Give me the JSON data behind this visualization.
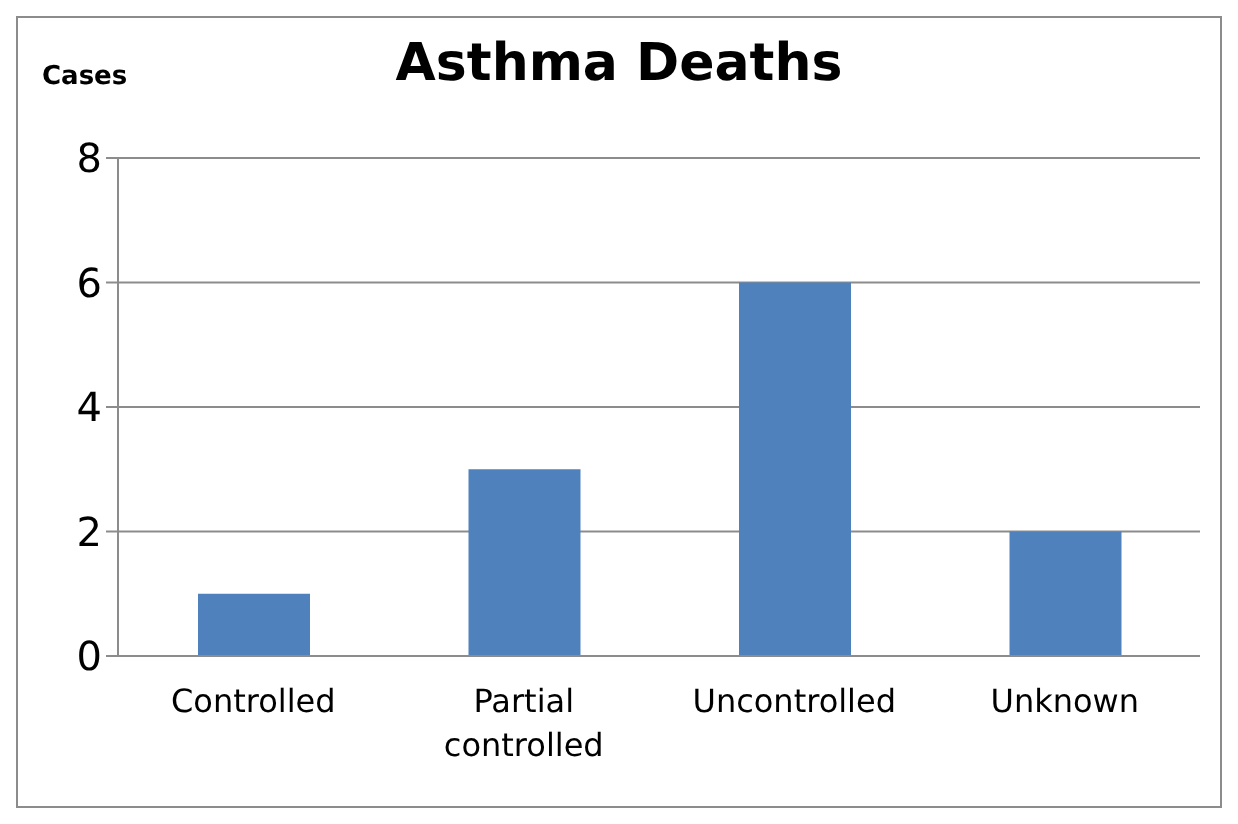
{
  "chart_data": {
    "type": "bar",
    "title": "Asthma Deaths",
    "ylabel": "Cases",
    "categories": [
      "Controlled",
      "Partial controlled",
      "Uncontrolled",
      "Unknown"
    ],
    "values": [
      1,
      3,
      6,
      2
    ],
    "color": "#4f81bd",
    "ylim": [
      0,
      8
    ],
    "yticks": [
      0,
      2,
      4,
      6,
      8
    ],
    "grid": "y",
    "legend": false
  }
}
